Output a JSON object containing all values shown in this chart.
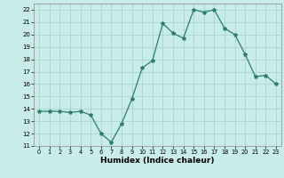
{
  "x": [
    0,
    1,
    2,
    3,
    4,
    5,
    6,
    7,
    8,
    9,
    10,
    11,
    12,
    13,
    14,
    15,
    16,
    17,
    18,
    19,
    20,
    21,
    22,
    23
  ],
  "y": [
    13.8,
    13.8,
    13.8,
    13.7,
    13.8,
    13.5,
    12.0,
    11.3,
    12.8,
    14.8,
    17.3,
    17.9,
    20.9,
    20.1,
    19.7,
    22.0,
    21.8,
    22.0,
    20.5,
    20.0,
    18.4,
    16.6,
    16.7,
    16.0
  ],
  "line_color": "#2e7d6e",
  "marker": "*",
  "marker_size": 3,
  "xlabel": "Humidex (Indice chaleur)",
  "bg_color": "#c8ece8",
  "grid_color": "#aad4d0",
  "xlim": [
    -0.5,
    23.5
  ],
  "ylim": [
    11,
    22.5
  ],
  "yticks": [
    11,
    12,
    13,
    14,
    15,
    16,
    17,
    18,
    19,
    20,
    21,
    22
  ],
  "xticks": [
    0,
    1,
    2,
    3,
    4,
    5,
    6,
    7,
    8,
    9,
    10,
    11,
    12,
    13,
    14,
    15,
    16,
    17,
    18,
    19,
    20,
    21,
    22,
    23
  ]
}
